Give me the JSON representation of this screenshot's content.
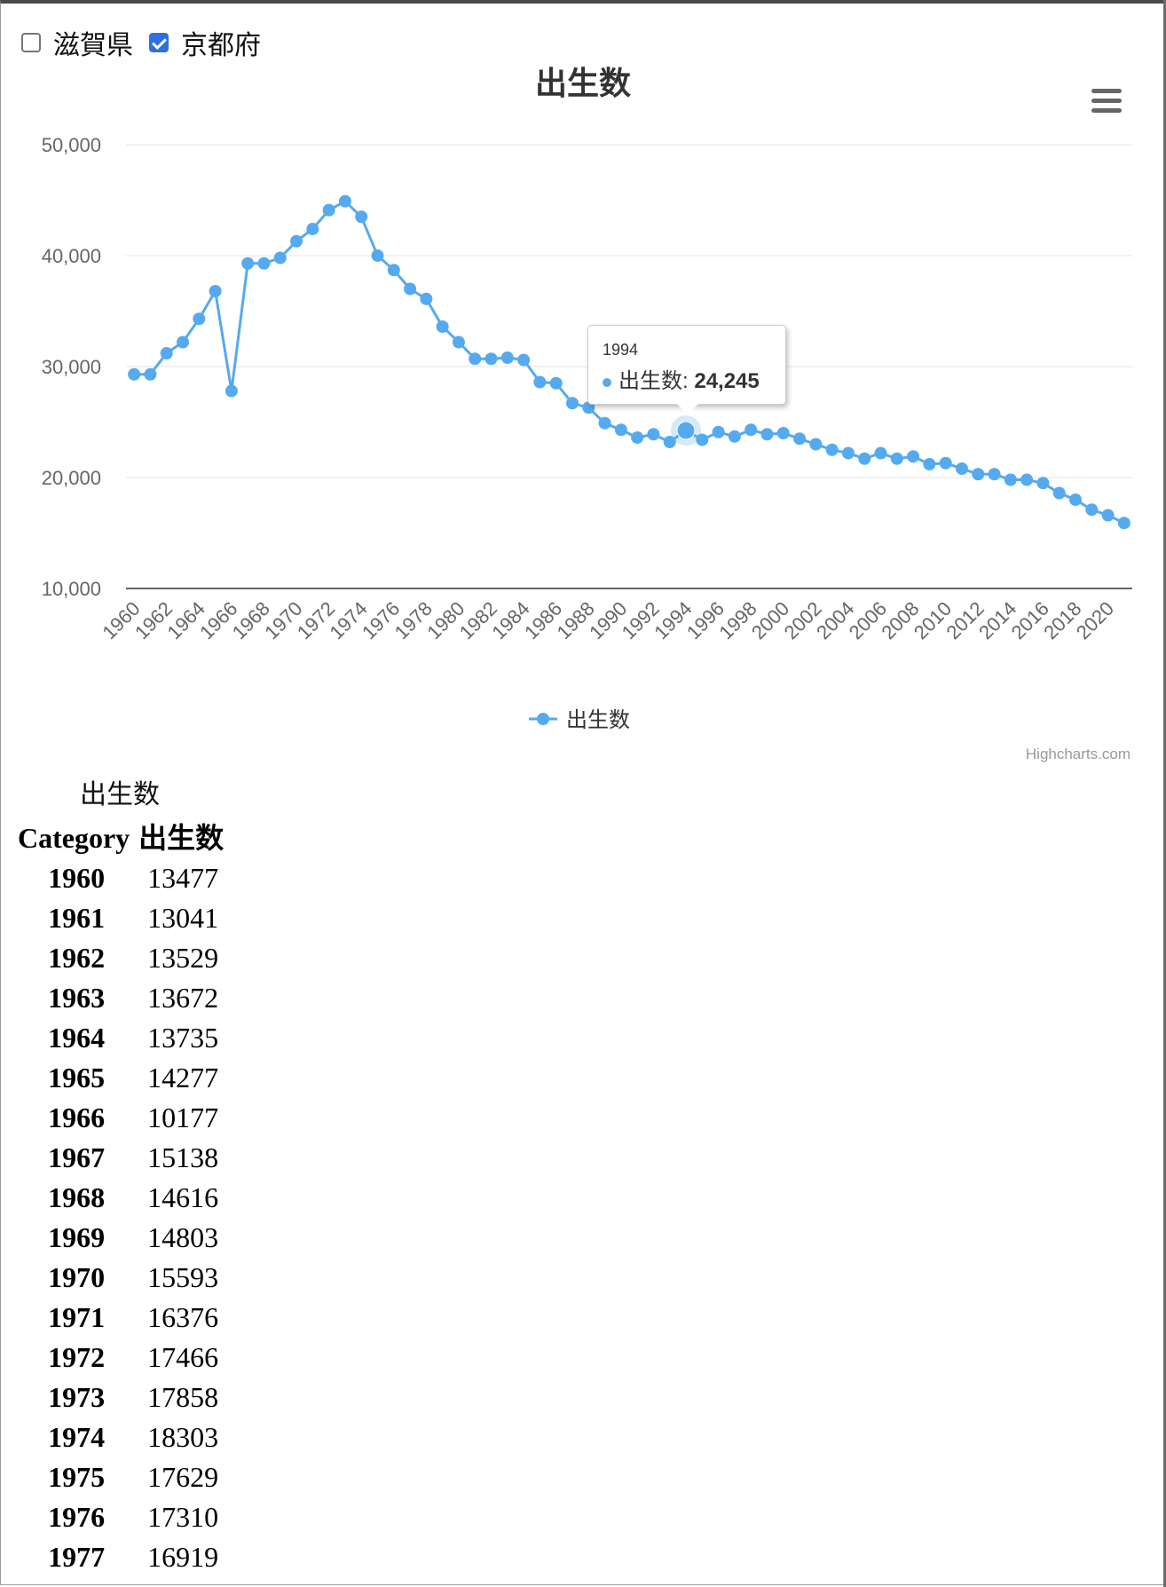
{
  "prefectures": [
    {
      "label": "滋賀県",
      "checked": false
    },
    {
      "label": "京都府",
      "checked": true
    }
  ],
  "chart_data": {
    "type": "line",
    "title": "出生数",
    "xlabel": "",
    "ylabel": "",
    "categories": [
      1960,
      1961,
      1962,
      1963,
      1964,
      1965,
      1966,
      1967,
      1968,
      1969,
      1970,
      1971,
      1972,
      1973,
      1974,
      1975,
      1976,
      1977,
      1978,
      1979,
      1980,
      1981,
      1982,
      1983,
      1984,
      1985,
      1986,
      1987,
      1988,
      1989,
      1990,
      1991,
      1992,
      1993,
      1994,
      1995,
      1996,
      1997,
      1998,
      1999,
      2000,
      2001,
      2002,
      2003,
      2004,
      2005,
      2006,
      2007,
      2008,
      2009,
      2010,
      2011,
      2012,
      2013,
      2014,
      2015,
      2016,
      2017,
      2018,
      2019,
      2020,
      2021
    ],
    "x_tick_labels": [
      "1960",
      "1962",
      "1964",
      "1966",
      "1968",
      "1970",
      "1972",
      "1974",
      "1976",
      "1978",
      "1980",
      "1982",
      "1984",
      "1986",
      "1988",
      "1990",
      "1992",
      "1994",
      "1996",
      "1998",
      "2000",
      "2002",
      "2004",
      "2006",
      "2008",
      "2010",
      "2012",
      "2014",
      "2016",
      "2018",
      "2020"
    ],
    "series": [
      {
        "name": "出生数",
        "color": "#55aaef",
        "values": [
          29300,
          29300,
          31200,
          32200,
          34300,
          36800,
          27800,
          39300,
          39300,
          39800,
          41300,
          42400,
          44100,
          44900,
          43500,
          40000,
          38700,
          37000,
          36100,
          33600,
          32200,
          30700,
          30700,
          30800,
          30600,
          28600,
          28500,
          26700,
          26300,
          24900,
          24300,
          23600,
          23900,
          23200,
          24245,
          23400,
          24100,
          23700,
          24300,
          23900,
          24000,
          23500,
          23000,
          22500,
          22200,
          21700,
          22200,
          21700,
          21900,
          21200,
          21300,
          20800,
          20300,
          20300,
          19800,
          19800,
          19500,
          18600,
          18000,
          17100,
          16600,
          15900
        ]
      }
    ],
    "ylim": [
      10000,
      50000
    ],
    "y_ticks": [
      10000,
      20000,
      30000,
      40000,
      50000
    ],
    "y_tick_labels": [
      "10,000",
      "20,000",
      "30,000",
      "40,000",
      "50,000"
    ],
    "grid": true,
    "legend": "bottom-center",
    "hover_point": {
      "category": "1994",
      "series": "出生数",
      "value": "24,245"
    }
  },
  "menu_icon": "hamburger-icon",
  "credits": "Highcharts.com",
  "table": {
    "caption": "出生数",
    "headers": [
      "Category",
      "出生数"
    ],
    "rows": [
      [
        "1960",
        "13477"
      ],
      [
        "1961",
        "13041"
      ],
      [
        "1962",
        "13529"
      ],
      [
        "1963",
        "13672"
      ],
      [
        "1964",
        "13735"
      ],
      [
        "1965",
        "14277"
      ],
      [
        "1966",
        "10177"
      ],
      [
        "1967",
        "15138"
      ],
      [
        "1968",
        "14616"
      ],
      [
        "1969",
        "14803"
      ],
      [
        "1970",
        "15593"
      ],
      [
        "1971",
        "16376"
      ],
      [
        "1972",
        "17466"
      ],
      [
        "1973",
        "17858"
      ],
      [
        "1974",
        "18303"
      ],
      [
        "1975",
        "17629"
      ],
      [
        "1976",
        "17310"
      ],
      [
        "1977",
        "16919"
      ]
    ]
  }
}
